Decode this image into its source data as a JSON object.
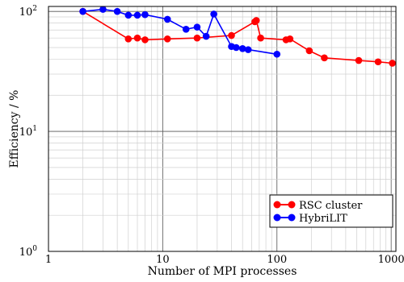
{
  "chart_data": {
    "type": "line",
    "xlabel": "Number of MPI processes",
    "ylabel": "Efficiency / %",
    "xscale": "log",
    "yscale": "log",
    "xlim": [
      1,
      1100
    ],
    "ylim": [
      1,
      110
    ],
    "grid": true,
    "legend_position": "bottom-right",
    "x_ticks": [
      {
        "value": 1,
        "label": "1"
      },
      {
        "value": 10,
        "label": "10"
      },
      {
        "value": 100,
        "label": "100"
      },
      {
        "value": 1000,
        "label": "1000"
      }
    ],
    "y_ticks": [
      {
        "value": 1,
        "base": "10",
        "exp": "0"
      },
      {
        "value": 10,
        "base": "10",
        "exp": "1"
      },
      {
        "value": 100,
        "base": "10",
        "exp": "2"
      }
    ],
    "series": [
      {
        "name": "RSC cluster",
        "color": "#ff0000",
        "x": [
          2,
          5,
          6,
          7,
          11,
          20,
          40,
          64,
          66,
          72,
          120,
          130,
          192,
          260,
          520,
          768,
          1024
        ],
        "y": [
          100,
          59,
          60,
          58,
          59,
          60,
          63,
          82,
          84,
          60,
          58,
          59,
          47,
          41,
          39,
          38,
          37
        ]
      },
      {
        "name": "HybriLIT",
        "color": "#0000ff",
        "x": [
          2,
          3,
          4,
          5,
          6,
          7,
          11,
          16,
          20,
          24,
          28,
          40,
          44,
          50,
          56,
          100
        ],
        "y": [
          100,
          104,
          100,
          93,
          93,
          94,
          86,
          71,
          74,
          62,
          95,
          51,
          50,
          49,
          48,
          44
        ]
      }
    ]
  }
}
